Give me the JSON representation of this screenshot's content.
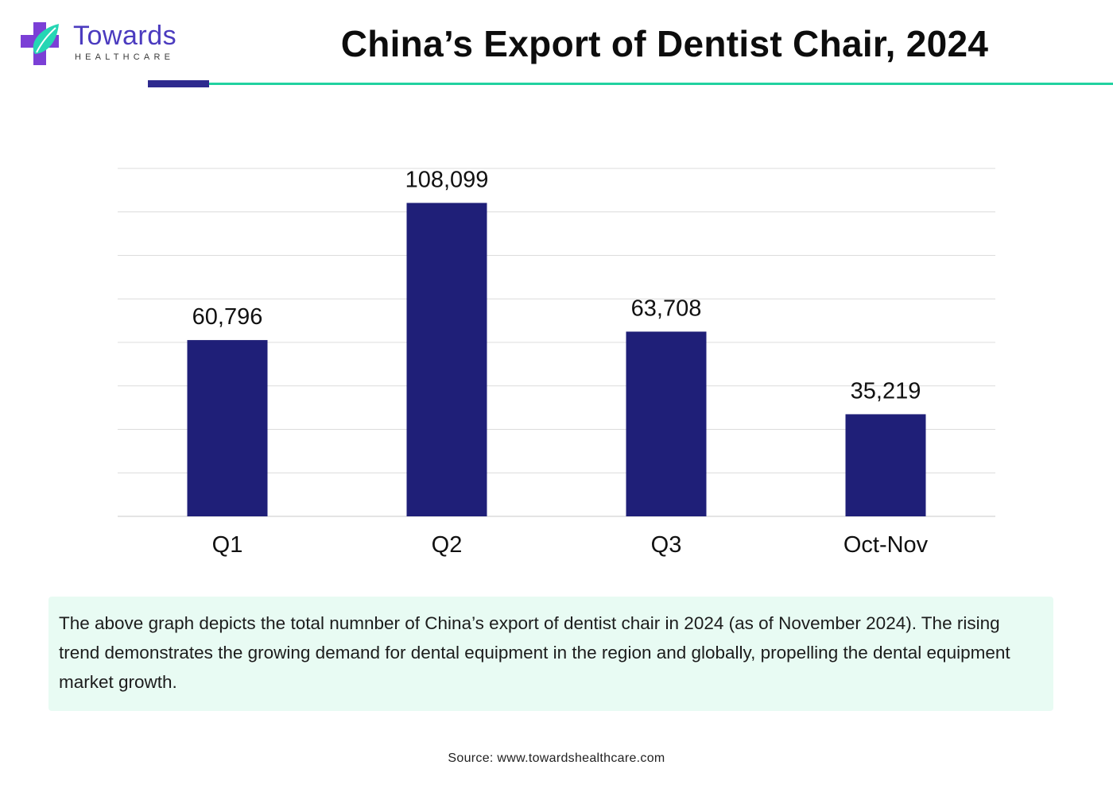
{
  "brand": {
    "name": "Towards",
    "tagline": "HEALTHCARE"
  },
  "title": "China’s Export of Dentist Chair, 2024",
  "chart_data": {
    "type": "bar",
    "title": "China’s Export of Dentist Chair, 2024",
    "categories": [
      "Q1",
      "Q2",
      "Q3",
      "Oct-Nov"
    ],
    "values": [
      60796,
      108099,
      63708,
      35219
    ],
    "value_labels": [
      "60,796",
      "108,099",
      "63,708",
      "35,219"
    ],
    "xlabel": "",
    "ylabel": "",
    "ylim": [
      0,
      120000
    ],
    "grid": true,
    "legend": "none",
    "bar_color": "#1f1f78"
  },
  "note": "The above graph depicts the total numnber of China’s export of dentist chair in 2024 (as of November 2024). The rising trend demonstrates the growing demand for dental equipment in the region and globally, propelling the dental equipment market growth.",
  "source": "Source: www.towardshealthcare.com",
  "colors": {
    "accent_teal": "#21d2a0",
    "accent_navy": "#2e2a8e",
    "brand_purple": "#4b3bbf",
    "note_background": "#e8fbf3"
  }
}
